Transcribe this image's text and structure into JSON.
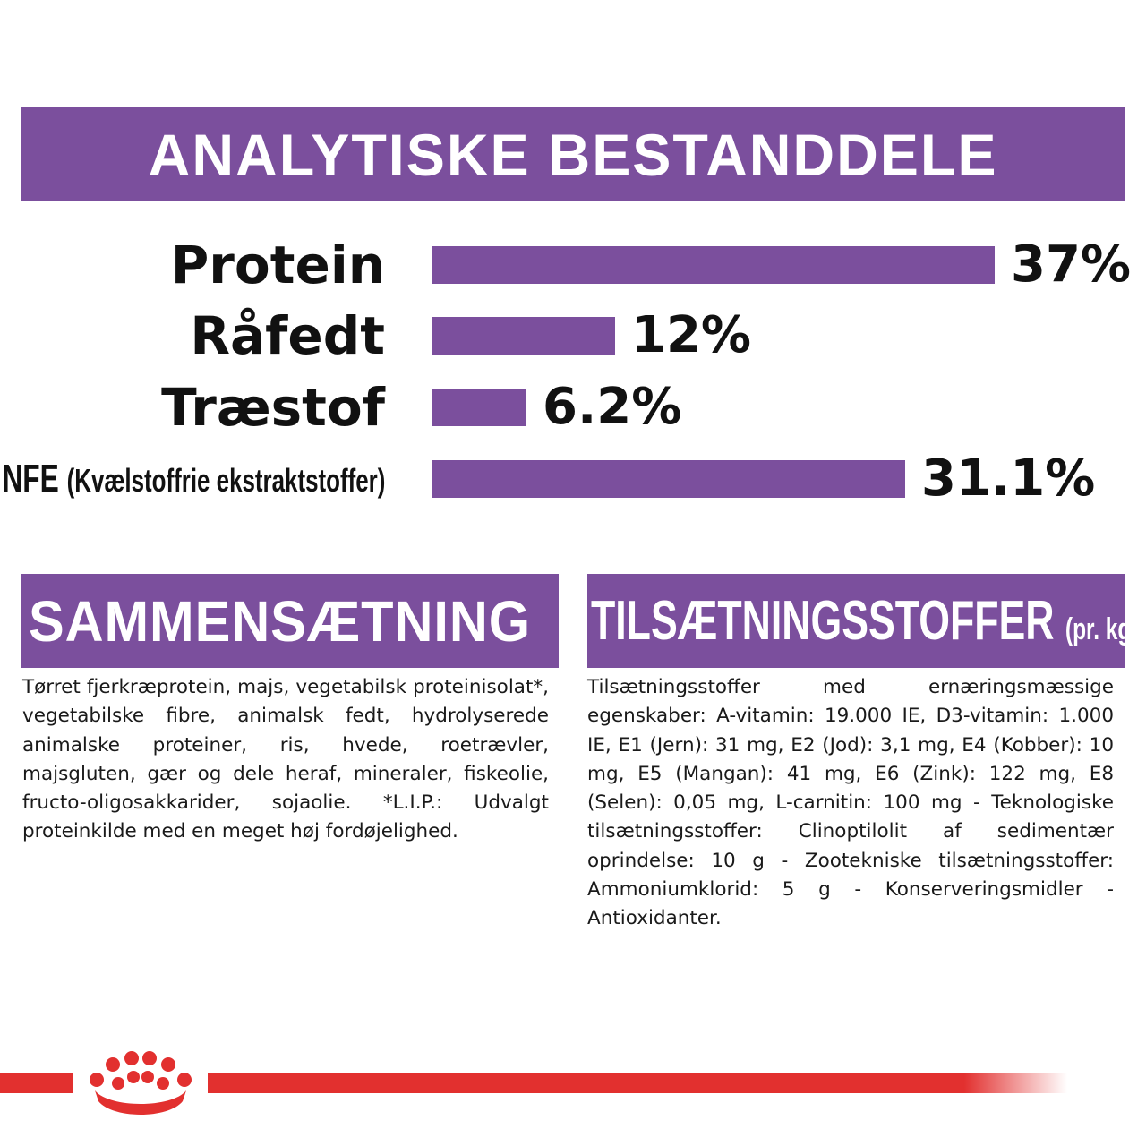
{
  "header": {
    "title": "ANALYTISKE BESTANDDELE"
  },
  "nutrients": [
    {
      "label": "Protein",
      "value_text": "37%",
      "value": 37
    },
    {
      "label": "Råfedt",
      "value_text": "12%",
      "value": 12
    },
    {
      "label": "Træstof",
      "value_text": "6.2%",
      "value": 6.2
    },
    {
      "label": "NFE",
      "label_sub": "(Kvælstoffrie ekstraktstoffer)",
      "value_text": "31.1%",
      "value": 31.1
    }
  ],
  "composition": {
    "title": "SAMMENSÆTNING",
    "text": "Tørret fjerkræprotein, majs, vegetabilsk proteinisolat*, vegetabilske fibre, animalsk fedt, hydrolyserede animalske proteiner, ris, hvede, roetrævler, majsgluten, gær og dele heraf, mineraler, fiskeolie, fructo-oligosakkarider, sojaolie. *L.I.P.: Udvalgt proteinkilde med en meget høj fordøjelighed."
  },
  "additives": {
    "title": "TILSÆTNINGSSTOFFER",
    "unit": "(pr. kg)",
    "text": "Tilsætningsstoffer med ernæringsmæssige egenskaber: A-vitamin: 19.000 IE, D3-vitamin: 1.000 IE, E1 (Jern): 31 mg, E2 (Jod): 3,1 mg, E4 (Kobber): 10 mg, E5 (Mangan): 41 mg, E6 (Zink): 122 mg, E8 (Selen): 0,05 mg, L-carnitin: 100 mg - Teknologiske tilsætningsstoffer: Clinoptilolit af sedimentær oprindelse: 10 g - Zootekniske tilsætningsstoffer: Ammoniumklorid: 5 g - Konserveringsmidler - Antioxidanter."
  },
  "colors": {
    "accent": "#7b4f9d",
    "brand_red": "#e2302f"
  },
  "footer": {
    "logo": "crown-icon"
  }
}
